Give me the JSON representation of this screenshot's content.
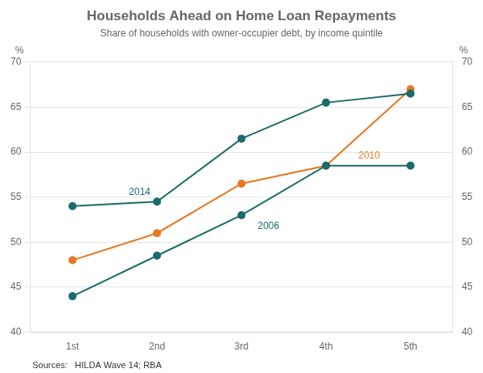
{
  "chart_data": {
    "type": "line",
    "title": "Households Ahead on Home Loan Repayments",
    "subtitle": "Share of households with owner-occupier debt, by income quintile",
    "source": "Sources:   HILDA Wave 14; RBA",
    "categories": [
      "1st",
      "2nd",
      "3rd",
      "4th",
      "5th"
    ],
    "series": [
      {
        "name": "2014",
        "color": "#1a6b6b",
        "values": [
          54.0,
          54.5,
          61.5,
          65.5,
          66.5
        ]
      },
      {
        "name": "2006",
        "color": "#1a6b6b",
        "values": [
          44.0,
          48.5,
          53.0,
          58.5,
          58.5
        ]
      },
      {
        "name": "2010",
        "color": "#e87722",
        "values": [
          48.0,
          51.0,
          56.5,
          58.5,
          67.0
        ]
      }
    ],
    "ylabel": "%",
    "ylim": [
      40,
      70
    ],
    "yticks": [
      40,
      45,
      50,
      55,
      60,
      65,
      70
    ],
    "y2label": "%",
    "y2lim": [
      40,
      70
    ],
    "y2ticks": [
      40,
      45,
      50,
      55,
      60,
      65,
      70
    ],
    "grid": true,
    "marker": "circle"
  }
}
